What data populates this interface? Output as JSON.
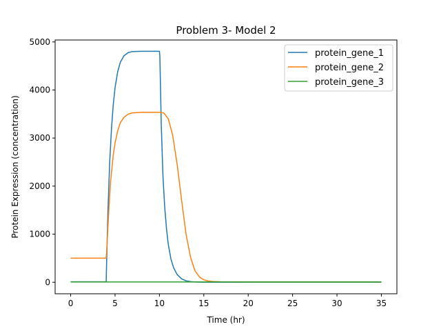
{
  "chart_data": {
    "type": "line",
    "title": "Problem 3- Model 2",
    "xlabel": "Time (hr)",
    "ylabel": "Protein Expression (concentration)",
    "xlim": [
      -1.75,
      36.75
    ],
    "ylim": [
      -240,
      5040
    ],
    "xticks": [
      0,
      5,
      10,
      15,
      20,
      25,
      30,
      35
    ],
    "yticks": [
      0,
      1000,
      2000,
      3000,
      4000,
      5000
    ],
    "grid": false,
    "legend_position": "top-right",
    "series": [
      {
        "name": "protein_gene_1",
        "color": "#1f77b4",
        "x": [
          0,
          4,
          4.05,
          4.2,
          4.4,
          4.6,
          4.8,
          5.0,
          5.3,
          5.6,
          6.0,
          6.5,
          7,
          8,
          9,
          10,
          10.05,
          10.2,
          10.4,
          10.6,
          10.8,
          11.0,
          11.3,
          11.6,
          12.0,
          12.5,
          13,
          13.5,
          14,
          15,
          20,
          25,
          30,
          35
        ],
        "y": [
          10,
          10,
          400,
          1500,
          2500,
          3200,
          3700,
          4050,
          4380,
          4580,
          4710,
          4780,
          4800,
          4805,
          4805,
          4805,
          4700,
          3300,
          2200,
          1550,
          1100,
          780,
          480,
          300,
          160,
          70,
          30,
          12,
          5,
          0,
          0,
          0,
          0,
          0
        ]
      },
      {
        "name": "protein_gene_2",
        "color": "#ff7f0e",
        "x": [
          0,
          4,
          4.1,
          4.3,
          4.5,
          4.8,
          5.0,
          5.3,
          5.6,
          6.0,
          6.5,
          7,
          8,
          9,
          10,
          10.5,
          11.0,
          11.5,
          12.0,
          12.5,
          13.0,
          13.5,
          14.0,
          14.5,
          15.0,
          15.5,
          16,
          17,
          20,
          25,
          30,
          35
        ],
        "y": [
          500,
          500,
          800,
          1500,
          2100,
          2650,
          2900,
          3150,
          3320,
          3430,
          3500,
          3525,
          3535,
          3535,
          3535,
          3520,
          3400,
          3050,
          2450,
          1700,
          1000,
          520,
          240,
          110,
          50,
          25,
          15,
          8,
          5,
          5,
          5,
          5
        ]
      },
      {
        "name": "protein_gene_3",
        "color": "#2ca02c",
        "x": [
          0,
          35
        ],
        "y": [
          5,
          5
        ]
      }
    ]
  }
}
